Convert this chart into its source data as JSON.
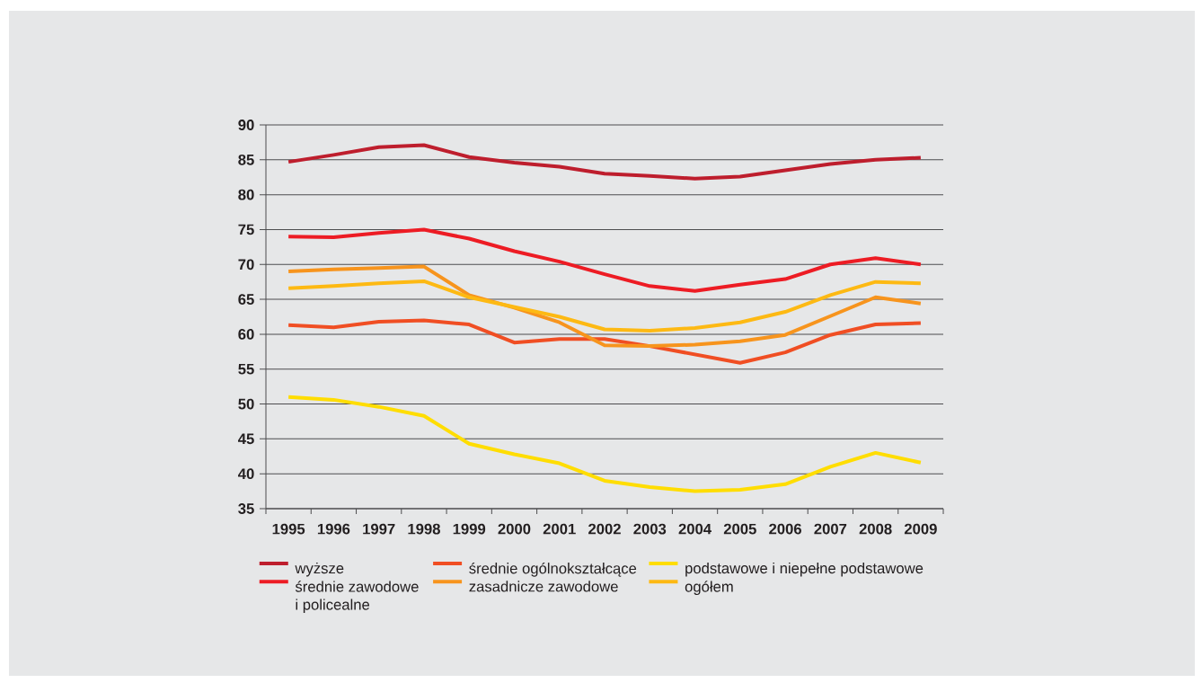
{
  "chart_data": {
    "type": "line",
    "categories": [
      "1995",
      "1996",
      "1997",
      "1998",
      "1999",
      "2000",
      "2001",
      "2002",
      "2003",
      "2004",
      "2005",
      "2006",
      "2007",
      "2008",
      "2009"
    ],
    "series": [
      {
        "name": "wyższe",
        "color": "#be1e2d",
        "values": [
          84.7,
          85.7,
          86.8,
          87.1,
          85.4,
          84.6,
          84.0,
          83.0,
          82.7,
          82.3,
          82.6,
          83.5,
          84.4,
          85.0,
          85.3
        ]
      },
      {
        "name": "średnie ogólnokształcące",
        "color": "#f04e23",
        "values": [
          61.3,
          61.0,
          61.8,
          62.0,
          61.4,
          58.8,
          59.3,
          59.3,
          58.3,
          57.1,
          55.9,
          57.4,
          59.9,
          61.4,
          61.6
        ]
      },
      {
        "name": "podstawowe i niepełne podstawowe",
        "color": "#ffdd00",
        "values": [
          51.0,
          50.6,
          49.6,
          48.3,
          44.3,
          42.8,
          41.5,
          39.0,
          38.1,
          37.5,
          37.7,
          38.5,
          41.0,
          43.0,
          41.6
        ]
      },
      {
        "name": "średnie zawodowe i policealne",
        "color": "#ed1c24",
        "values": [
          74.0,
          73.9,
          74.5,
          75.0,
          73.7,
          71.9,
          70.4,
          68.6,
          66.9,
          66.2,
          67.1,
          67.9,
          70.0,
          70.9,
          70.0
        ]
      },
      {
        "name": "zasadnicze zawodowe",
        "color": "#f7941d",
        "values": [
          69.0,
          69.3,
          69.5,
          69.7,
          65.6,
          63.8,
          61.7,
          58.4,
          58.3,
          58.5,
          59.0,
          59.9,
          62.6,
          65.3,
          64.4
        ]
      },
      {
        "name": "ogółem",
        "color": "#fdb913",
        "values": [
          66.6,
          66.9,
          67.3,
          67.6,
          65.3,
          63.9,
          62.5,
          60.7,
          60.5,
          60.9,
          61.7,
          63.2,
          65.6,
          67.5,
          67.3
        ]
      }
    ],
    "ylim": [
      35,
      90
    ],
    "yticks": [
      35,
      40,
      45,
      50,
      55,
      60,
      65,
      70,
      75,
      80,
      85,
      90
    ],
    "grid": "y",
    "legend": "bottom"
  }
}
